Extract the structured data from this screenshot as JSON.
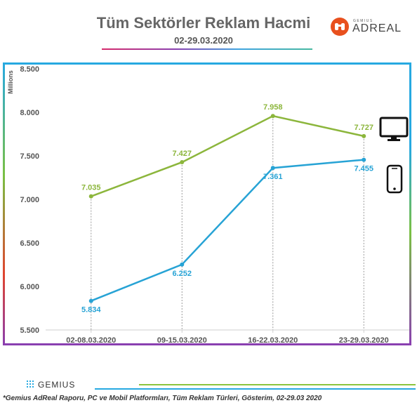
{
  "header": {
    "title": "Tüm Sektörler Reklam Hacmi",
    "subtitle": "02-29.03.2020"
  },
  "logo": {
    "small_text": "GEMIUS",
    "word": "ADREAL",
    "icon": "binoculars-icon",
    "color": "#e8501e"
  },
  "chart_data": {
    "type": "line",
    "ylabel": "Millions",
    "ylim": [
      5.5,
      8.5
    ],
    "yticks": [
      5.5,
      6.0,
      6.5,
      7.0,
      7.5,
      8.0,
      8.5
    ],
    "ytick_labels": [
      "5.500",
      "6.000",
      "6.500",
      "7.000",
      "7.500",
      "8.000",
      "8.500"
    ],
    "categories": [
      "02-08.03.2020",
      "09-15.03.2020",
      "16-22.03.2020",
      "23-29.03.2020"
    ],
    "series": [
      {
        "icon": "desktop-monitor-icon",
        "color": "#8cb63c",
        "values": [
          7.035,
          7.427,
          7.958,
          7.727
        ],
        "labels": [
          "7.035",
          "7.427",
          "7.958",
          "7.727"
        ]
      },
      {
        "icon": "mobile-phone-icon",
        "color": "#27a3d5",
        "values": [
          5.834,
          6.252,
          7.361,
          7.455
        ],
        "labels": [
          "5.834",
          "6.252",
          "7.361",
          "7.455"
        ]
      }
    ],
    "grid": false,
    "vertical_dotted_guides": true
  },
  "footer": {
    "brand": "GEMIUS",
    "note": "*Gemius AdReal Raporu, PC ve Mobil Platformları, Tüm Reklam Türleri, Gösterim, 02-29.03 2020"
  }
}
